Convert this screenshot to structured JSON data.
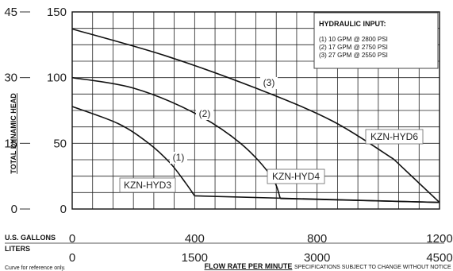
{
  "chart_data": {
    "type": "line",
    "ylabel": "TOTAL DYNAMIC HEAD",
    "xlabel": "FLOW RATE PER MINUTE",
    "x_units_primary": "U.S. GALLONS",
    "x_units_secondary": "LITERS",
    "y_ticks_outer": [
      "0",
      "15",
      "30",
      "45"
    ],
    "y_ticks_inner": [
      "0",
      "50",
      "100",
      "150"
    ],
    "x_ticks_primary": [
      "0",
      "400",
      "800",
      "1200"
    ],
    "x_ticks_secondary": [
      "0",
      "1500",
      "3000",
      "4500"
    ],
    "xlim": [
      0,
      1200
    ],
    "ylim": [
      0,
      150
    ],
    "grid": true,
    "series": [
      {
        "name": "KZN-HYD3",
        "marker": "(1)",
        "x": [
          0,
          150,
          250,
          320,
          370,
          400,
          1200
        ],
        "y": [
          78,
          65,
          50,
          35,
          20,
          10,
          5
        ]
      },
      {
        "name": "KZN-HYD4",
        "marker": "(2)",
        "x": [
          0,
          200,
          400,
          550,
          650,
          680,
          1200
        ],
        "y": [
          100,
          92,
          73,
          50,
          25,
          8,
          5
        ]
      },
      {
        "name": "KZN-HYD6",
        "marker": "(3)",
        "x": [
          0,
          300,
          600,
          850,
          1050,
          1200
        ],
        "y": [
          137,
          117,
          92,
          67,
          38,
          5
        ]
      }
    ],
    "legend": {
      "title": "HYDRAULIC INPUT:",
      "entries": [
        "(1)  10 GPM @ 2800 PSI",
        "(2)  17 GPM @ 2750 PSI",
        "(3)  27 GPM @ 2550 PSI"
      ],
      "position": "top-right"
    }
  },
  "footer": {
    "left": "Curve for reference only.",
    "right": "SPECIFICATIONS SUBJECT TO CHANGE WITHOUT NOTICE"
  }
}
